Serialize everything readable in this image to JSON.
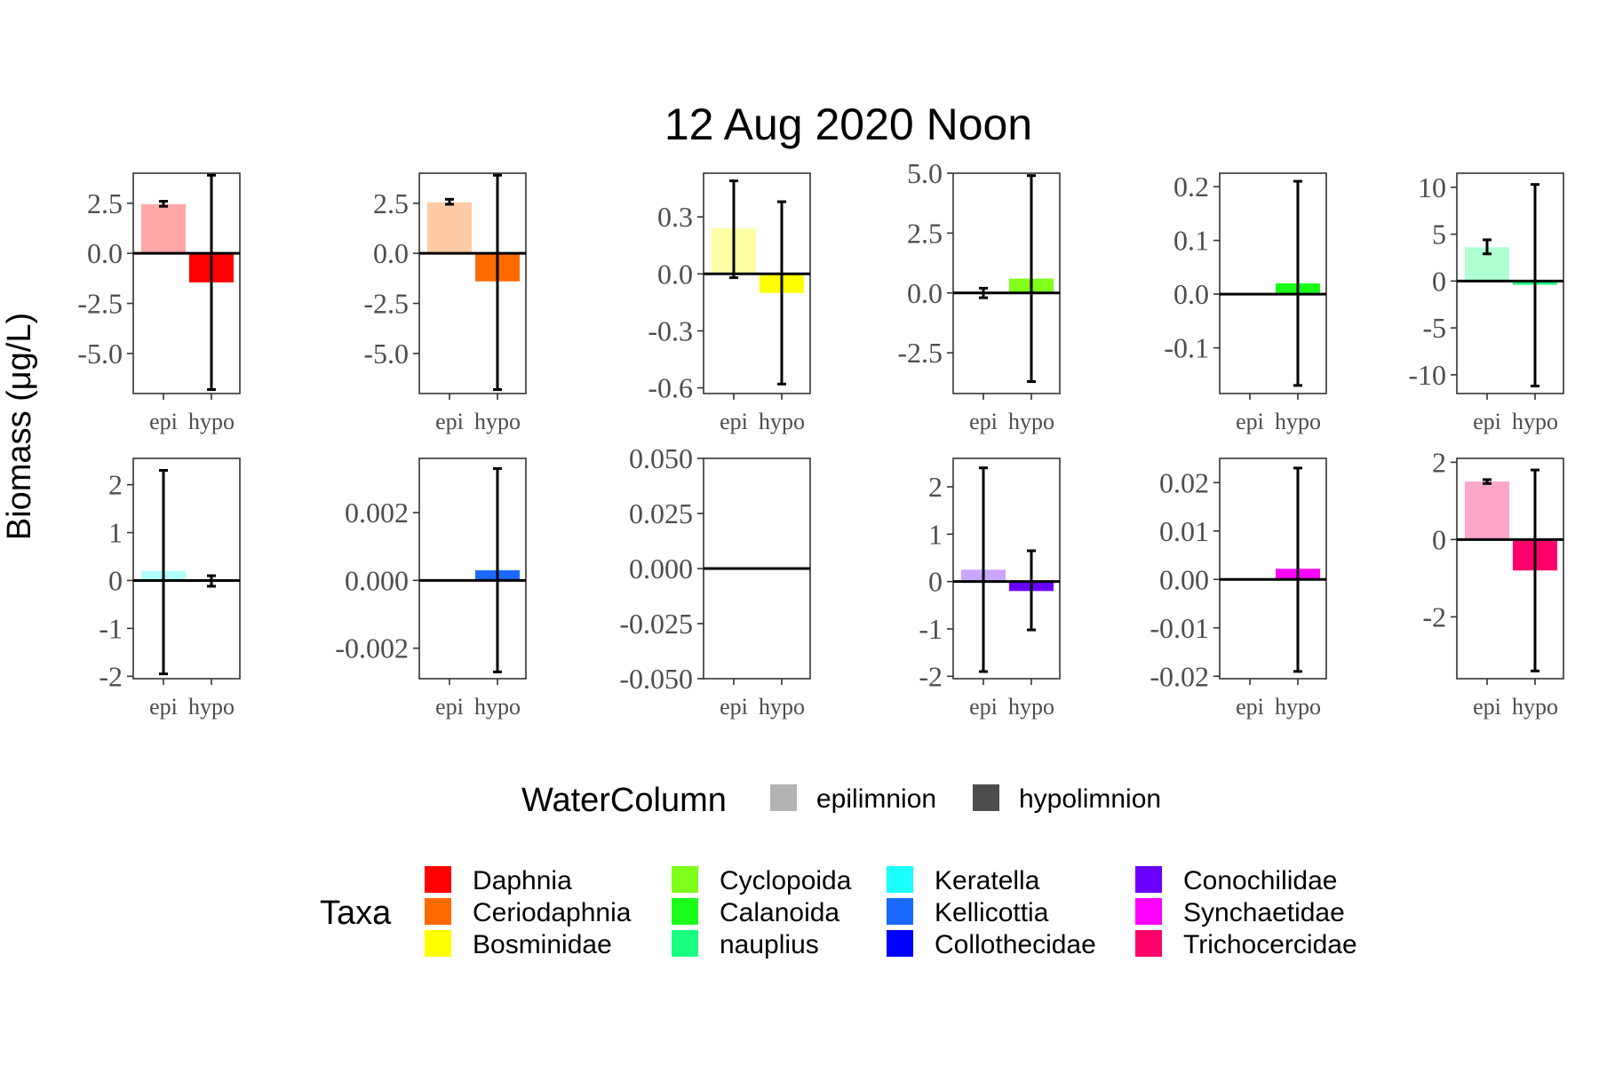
{
  "chart_data": {
    "type": "bar",
    "title": "12 Aug 2020 Noon",
    "ylabel": "Biomass (μg/L)",
    "categories": [
      "epi",
      "hypo"
    ],
    "facets": [
      {
        "taxon": "Daphnia",
        "ylim": [
          -7,
          4
        ],
        "ticks": [
          2.5,
          0.0,
          -2.5,
          -5.0
        ],
        "tick_labels": [
          "2.5",
          "0.0",
          "-2.5",
          "-5.0"
        ],
        "values": [
          2.45,
          -1.45
        ],
        "err_low": [
          2.35,
          -6.8
        ],
        "err_high": [
          2.6,
          3.9
        ]
      },
      {
        "taxon": "Ceriodaphnia",
        "ylim": [
          -7,
          4
        ],
        "ticks": [
          2.5,
          0.0,
          -2.5,
          -5.0
        ],
        "tick_labels": [
          "2.5",
          "0.0",
          "-2.5",
          "-5.0"
        ],
        "values": [
          2.55,
          -1.4
        ],
        "err_low": [
          2.45,
          -6.8
        ],
        "err_high": [
          2.7,
          3.9
        ]
      },
      {
        "taxon": "Bosminidae",
        "ylim": [
          -0.63,
          0.53
        ],
        "ticks": [
          0.3,
          0.0,
          -0.3,
          -0.6
        ],
        "tick_labels": [
          "0.3",
          "0.0",
          "-0.3",
          "-0.6"
        ],
        "values": [
          0.24,
          -0.1
        ],
        "err_low": [
          -0.02,
          -0.58
        ],
        "err_high": [
          0.49,
          0.38
        ]
      },
      {
        "taxon": "Cyclopoida",
        "ylim": [
          -4.2,
          5.0
        ],
        "ticks": [
          5.0,
          2.5,
          0.0,
          -2.5
        ],
        "tick_labels": [
          "5.0",
          "2.5",
          "0.0",
          "-2.5"
        ],
        "values": [
          0.0,
          0.6
        ],
        "err_low": [
          -0.2,
          -3.7
        ],
        "err_high": [
          0.2,
          4.9
        ]
      },
      {
        "taxon": "Calanoida",
        "ylim": [
          -0.185,
          0.225
        ],
        "ticks": [
          0.2,
          0.1,
          0.0,
          -0.1
        ],
        "tick_labels": [
          "0.2",
          "0.1",
          "0.0",
          "-0.1"
        ],
        "values": [
          0.0,
          0.02
        ],
        "err_low": [
          0.0,
          -0.17
        ],
        "err_high": [
          0.0,
          0.21
        ]
      },
      {
        "taxon": "nauplius",
        "ylim": [
          -12,
          11.5
        ],
        "ticks": [
          10,
          5,
          0,
          -5,
          -10
        ],
        "tick_labels": [
          "10",
          "5",
          "0",
          "-5",
          "-10"
        ],
        "values": [
          3.6,
          -0.4
        ],
        "err_low": [
          2.9,
          -11.2
        ],
        "err_high": [
          4.4,
          10.3
        ]
      },
      {
        "taxon": "Keratella",
        "ylim": [
          -2.05,
          2.55
        ],
        "ticks": [
          2,
          1,
          0,
          -1,
          -2
        ],
        "tick_labels": [
          "2",
          "1",
          "0",
          "-1",
          "-2"
        ],
        "values": [
          0.2,
          0.0
        ],
        "err_low": [
          -1.95,
          -0.12
        ],
        "err_high": [
          2.3,
          0.1
        ]
      },
      {
        "taxon": "Kellicottia",
        "ylim": [
          -0.0029,
          0.0036
        ],
        "ticks": [
          0.002,
          0.0,
          -0.002
        ],
        "tick_labels": [
          "0.002",
          "0.000",
          "-0.002"
        ],
        "values": [
          0.0,
          0.0003
        ],
        "err_low": [
          0.0,
          -0.0027
        ],
        "err_high": [
          0.0,
          0.0033
        ]
      },
      {
        "taxon": "Collothecidae",
        "ylim": [
          -0.05,
          0.05
        ],
        "ticks": [
          0.05,
          0.025,
          0.0,
          -0.025,
          -0.05
        ],
        "tick_labels": [
          "0.050",
          "0.025",
          "0.000",
          "-0.025",
          "-0.050"
        ],
        "values": [
          0.0,
          0.0
        ],
        "err_low": [
          0.0,
          0.0
        ],
        "err_high": [
          0.0,
          0.0
        ]
      },
      {
        "taxon": "Conochilidae",
        "ylim": [
          -2.05,
          2.6
        ],
        "ticks": [
          2,
          1,
          0,
          -1,
          -2
        ],
        "tick_labels": [
          "2",
          "1",
          "0",
          "-1",
          "-2"
        ],
        "values": [
          0.25,
          -0.2
        ],
        "err_low": [
          -1.9,
          -1.02
        ],
        "err_high": [
          2.4,
          0.65
        ]
      },
      {
        "taxon": "Synchaetidae",
        "ylim": [
          -0.0205,
          0.025
        ],
        "ticks": [
          0.02,
          0.01,
          0.0,
          -0.01,
          -0.02
        ],
        "tick_labels": [
          "0.02",
          "0.01",
          "0.00",
          "-0.01",
          "-0.02"
        ],
        "values": [
          0.0,
          0.0022
        ],
        "err_low": [
          0.0,
          -0.019
        ],
        "err_high": [
          0.0,
          0.023
        ]
      },
      {
        "taxon": "Trichocercidae",
        "ylim": [
          -3.6,
          2.1
        ],
        "ticks": [
          2,
          0,
          -2
        ],
        "tick_labels": [
          "2",
          "0",
          "-2"
        ],
        "values": [
          1.5,
          -0.8
        ],
        "err_low": [
          1.45,
          -3.4
        ],
        "err_high": [
          1.55,
          1.8
        ]
      }
    ],
    "legend_watercolumn": {
      "title": "WaterColumn",
      "items": [
        {
          "label": "epilimnion",
          "color": "#b3b3b3"
        },
        {
          "label": "hypolimnion",
          "color": "#4d4d4d"
        }
      ]
    },
    "legend_taxa": {
      "title": "Taxa",
      "items": [
        {
          "label": "Daphnia",
          "color": "#ff0000"
        },
        {
          "label": "Ceriodaphnia",
          "color": "#ff6a00"
        },
        {
          "label": "Bosminidae",
          "color": "#ffff00"
        },
        {
          "label": "Cyclopoida",
          "color": "#80ff1a"
        },
        {
          "label": "Calanoida",
          "color": "#1aff1a"
        },
        {
          "label": "nauplius",
          "color": "#1aff80"
        },
        {
          "label": "Keratella",
          "color": "#1affff"
        },
        {
          "label": "Kellicottia",
          "color": "#1a6aff"
        },
        {
          "label": "Collothecidae",
          "color": "#0000ff"
        },
        {
          "label": "Conochilidae",
          "color": "#6a00ff"
        },
        {
          "label": "Synchaetidae",
          "color": "#ff00ff"
        },
        {
          "label": "Trichocercidae",
          "color": "#ff006a"
        }
      ]
    },
    "epi_alpha": 0.35,
    "grid": false
  }
}
